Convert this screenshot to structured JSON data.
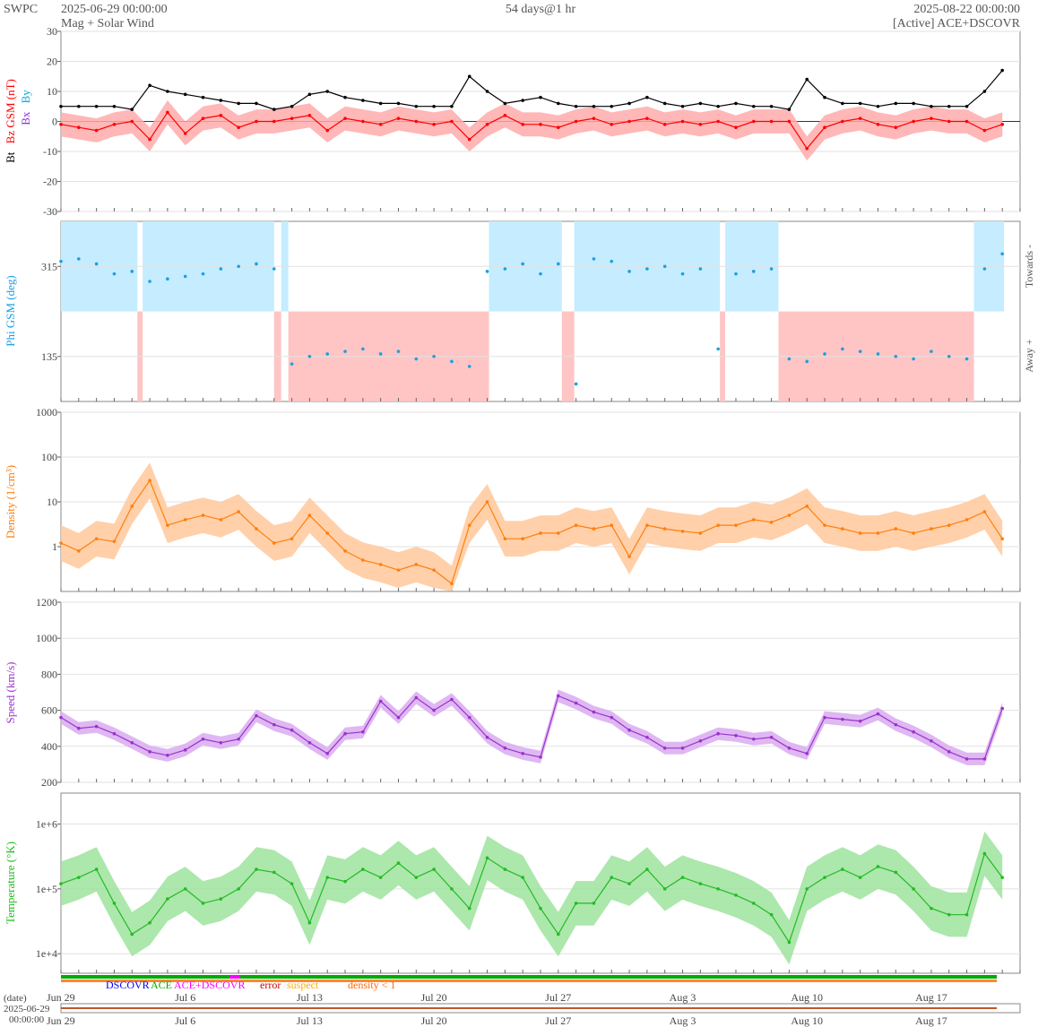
{
  "header": {
    "agency": "SWPC",
    "start": "2025-06-29 00:00:00",
    "subtitle": "Mag + Solar Wind",
    "span": "54 days@1 hr",
    "end": "2025-08-22 00:00:00",
    "source": "[Active] ACE+DSCOVR"
  },
  "colors": {
    "bt": "#000000",
    "bz": "#ff0000",
    "bz_band": "#ffaaaa",
    "bx": "#8a2be2",
    "by": "#00aadd",
    "phi": "#1aa0e0",
    "towards_band": "#c5ecff",
    "away_band": "#ffc5c5",
    "density": "#ff7f0e",
    "density_band": "#ffc89a",
    "speed": "#9933cc",
    "speed_band": "#d9aaf0",
    "temperature": "#22bb22",
    "temperature_band": "#9de39d",
    "dscovr": "#0000ff",
    "ace": "#00aa00",
    "ace_dscovr": "#ff00ff",
    "error": "#cc0000",
    "suspect": "#ffaa00",
    "density_flag": "#ff6600"
  },
  "legend": {
    "dscovr": "DSCOVR",
    "ace": "ACE",
    "ace_dscovr": "ACE+DSCOVR",
    "error": "error",
    "suspect": "suspect",
    "density_flag": "density < 1"
  },
  "footer": {
    "date_label": "(date)",
    "date_line1": "2025-06-29",
    "date_line2": "00:00:00"
  },
  "chart_data": [
    {
      "type": "line",
      "panel": "magnetic field",
      "ylabel_parts": [
        "Bt",
        "Bz GSM (nT)",
        "Bx",
        "By"
      ],
      "ylim": [
        -30,
        30
      ],
      "yticks": [
        -30,
        -20,
        -10,
        0,
        10,
        20,
        30
      ],
      "x_days": [
        0,
        1,
        2,
        3,
        4,
        5,
        6,
        7,
        8,
        9,
        10,
        11,
        12,
        13,
        14,
        15,
        16,
        17,
        18,
        19,
        20,
        21,
        22,
        23,
        24,
        25,
        26,
        27,
        28,
        29,
        30,
        31,
        32,
        33,
        34,
        35,
        36,
        37,
        38,
        39,
        40,
        41,
        42,
        43,
        44,
        45,
        46,
        47,
        48,
        49,
        50,
        51,
        52,
        53
      ],
      "series": [
        {
          "name": "Bt",
          "values": [
            5,
            5,
            5,
            5,
            4,
            12,
            10,
            9,
            8,
            7,
            6,
            6,
            4,
            5,
            9,
            10,
            8,
            7,
            6,
            6,
            5,
            5,
            5,
            15,
            10,
            6,
            7,
            8,
            6,
            5,
            5,
            5,
            6,
            8,
            6,
            5,
            6,
            5,
            6,
            5,
            5,
            4,
            14,
            8,
            6,
            6,
            5,
            6,
            6,
            5,
            5,
            5,
            10,
            17
          ]
        },
        {
          "name": "Bz",
          "values": [
            -1,
            -2,
            -3,
            -1,
            0,
            -6,
            3,
            -4,
            1,
            2,
            -2,
            0,
            0,
            1,
            2,
            -3,
            1,
            0,
            -1,
            1,
            0,
            -1,
            0,
            -6,
            -1,
            2,
            -1,
            -1,
            -2,
            0,
            1,
            -1,
            0,
            1,
            -1,
            0,
            -1,
            0,
            -2,
            0,
            0,
            0,
            -9,
            -2,
            0,
            1,
            -1,
            -2,
            0,
            1,
            0,
            0,
            -3,
            -1
          ]
        },
        {
          "name": "Bx",
          "values": [
            0,
            0,
            0,
            0,
            0,
            0,
            0,
            0,
            0,
            0,
            0,
            0,
            0,
            0,
            0,
            0,
            0,
            0,
            0,
            0,
            0,
            0,
            0,
            0,
            0,
            0,
            0,
            0,
            0,
            0,
            0,
            0,
            0,
            0,
            0,
            0,
            0,
            0,
            0,
            0,
            0,
            0,
            0,
            0,
            0,
            0,
            0,
            0,
            0,
            0,
            0,
            0,
            0,
            0
          ]
        },
        {
          "name": "By",
          "values": [
            0,
            0,
            0,
            0,
            0,
            0,
            0,
            0,
            0,
            0,
            0,
            0,
            0,
            0,
            0,
            0,
            0,
            0,
            0,
            0,
            0,
            0,
            0,
            0,
            0,
            0,
            0,
            0,
            0,
            0,
            0,
            0,
            0,
            0,
            0,
            0,
            0,
            0,
            0,
            0,
            0,
            0,
            0,
            0,
            0,
            0,
            0,
            0,
            0,
            0,
            0,
            0,
            0,
            0
          ]
        }
      ]
    },
    {
      "type": "scatter",
      "panel": "phi angle",
      "ylabel": "Phi GSM (deg)",
      "right_labels": [
        "Towards -",
        "Away +"
      ],
      "ylim": [
        45,
        405
      ],
      "yticks": [
        135,
        315
      ],
      "sectors": [
        {
          "from": 0,
          "to": 4.3,
          "sector": "towards"
        },
        {
          "from": 4.3,
          "to": 4.6,
          "sector": "away"
        },
        {
          "from": 4.6,
          "to": 12.0,
          "sector": "towards"
        },
        {
          "from": 12.0,
          "to": 12.4,
          "sector": "away"
        },
        {
          "from": 12.4,
          "to": 12.8,
          "sector": "towards"
        },
        {
          "from": 12.8,
          "to": 24.1,
          "sector": "away"
        },
        {
          "from": 24.1,
          "to": 28.2,
          "sector": "towards"
        },
        {
          "from": 28.2,
          "to": 28.9,
          "sector": "away"
        },
        {
          "from": 28.9,
          "to": 37.1,
          "sector": "towards"
        },
        {
          "from": 37.1,
          "to": 37.4,
          "sector": "away"
        },
        {
          "from": 37.4,
          "to": 40.4,
          "sector": "towards"
        },
        {
          "from": 40.4,
          "to": 51.4,
          "sector": "away"
        },
        {
          "from": 51.4,
          "to": 53.1,
          "sector": "towards"
        }
      ],
      "x_days": [
        0,
        1,
        2,
        3,
        4,
        5,
        6,
        7,
        8,
        9,
        10,
        11,
        12,
        13,
        14,
        15,
        16,
        17,
        18,
        19,
        20,
        21,
        22,
        23,
        24,
        25,
        26,
        27,
        28,
        29,
        30,
        31,
        32,
        33,
        34,
        35,
        36,
        37,
        38,
        39,
        40,
        41,
        42,
        43,
        44,
        45,
        46,
        47,
        48,
        49,
        50,
        51,
        52,
        53
      ],
      "values": [
        325,
        330,
        320,
        300,
        305,
        285,
        290,
        295,
        300,
        310,
        315,
        320,
        310,
        120,
        135,
        140,
        145,
        150,
        140,
        145,
        130,
        135,
        125,
        115,
        305,
        310,
        320,
        300,
        320,
        80,
        330,
        325,
        305,
        310,
        315,
        300,
        310,
        150,
        300,
        305,
        310,
        130,
        125,
        140,
        150,
        145,
        140,
        135,
        130,
        145,
        135,
        130,
        310,
        340
      ]
    },
    {
      "type": "line",
      "panel": "density",
      "ylabel": "Density (1/cm³)",
      "log_scale": true,
      "ylim": [
        0.1,
        1000
      ],
      "yticks": [
        1,
        10,
        100,
        1000
      ],
      "x_days": [
        0,
        1,
        2,
        3,
        4,
        5,
        6,
        7,
        8,
        9,
        10,
        11,
        12,
        13,
        14,
        15,
        16,
        17,
        18,
        19,
        20,
        21,
        22,
        23,
        24,
        25,
        26,
        27,
        28,
        29,
        30,
        31,
        32,
        33,
        34,
        35,
        36,
        37,
        38,
        39,
        40,
        41,
        42,
        43,
        44,
        45,
        46,
        47,
        48,
        49,
        50,
        51,
        52,
        53
      ],
      "values": [
        1.2,
        0.8,
        1.5,
        1.3,
        8,
        30,
        3,
        4,
        5,
        4,
        6,
        2.5,
        1.2,
        1.5,
        5,
        2,
        0.8,
        0.5,
        0.4,
        0.3,
        0.4,
        0.3,
        0.15,
        3,
        10,
        1.5,
        1.5,
        2,
        2,
        3,
        2.5,
        3,
        0.6,
        3,
        2.5,
        2.2,
        2,
        3,
        3,
        4,
        3.5,
        5,
        8,
        3,
        2.5,
        2,
        2,
        2.5,
        2,
        2.5,
        3,
        4,
        6,
        1.5
      ]
    },
    {
      "type": "line",
      "panel": "speed",
      "ylabel": "Speed (km/s)",
      "ylim": [
        200,
        1200
      ],
      "yticks": [
        200,
        400,
        600,
        800,
        1000,
        1200
      ],
      "x_days": [
        0,
        1,
        2,
        3,
        4,
        5,
        6,
        7,
        8,
        9,
        10,
        11,
        12,
        13,
        14,
        15,
        16,
        17,
        18,
        19,
        20,
        21,
        22,
        23,
        24,
        25,
        26,
        27,
        28,
        29,
        30,
        31,
        32,
        33,
        34,
        35,
        36,
        37,
        38,
        39,
        40,
        41,
        42,
        43,
        44,
        45,
        46,
        47,
        48,
        49,
        50,
        51,
        52,
        53
      ],
      "values": [
        560,
        500,
        510,
        470,
        420,
        370,
        350,
        380,
        440,
        420,
        440,
        570,
        520,
        490,
        420,
        360,
        470,
        480,
        650,
        560,
        670,
        600,
        660,
        560,
        450,
        390,
        360,
        340,
        680,
        640,
        590,
        560,
        490,
        450,
        390,
        390,
        430,
        470,
        460,
        440,
        450,
        390,
        360,
        560,
        550,
        540,
        580,
        520,
        480,
        430,
        370,
        330,
        330,
        610
      ]
    },
    {
      "type": "line",
      "panel": "temperature",
      "ylabel": "Temperature (°K)",
      "log_scale": true,
      "ylim": [
        5000,
        3000000
      ],
      "ytick_labels": [
        "1e+4",
        "1e+5",
        "1e+6"
      ],
      "yticks": [
        10000,
        100000,
        1000000
      ],
      "x_days": [
        0,
        1,
        2,
        3,
        4,
        5,
        6,
        7,
        8,
        9,
        10,
        11,
        12,
        13,
        14,
        15,
        16,
        17,
        18,
        19,
        20,
        21,
        22,
        23,
        24,
        25,
        26,
        27,
        28,
        29,
        30,
        31,
        32,
        33,
        34,
        35,
        36,
        37,
        38,
        39,
        40,
        41,
        42,
        43,
        44,
        45,
        46,
        47,
        48,
        49,
        50,
        51,
        52,
        53
      ],
      "values": [
        120000,
        150000,
        200000,
        60000,
        20000,
        30000,
        70000,
        100000,
        60000,
        70000,
        100000,
        200000,
        180000,
        120000,
        30000,
        150000,
        130000,
        200000,
        150000,
        250000,
        150000,
        200000,
        100000,
        50000,
        300000,
        200000,
        150000,
        50000,
        20000,
        60000,
        60000,
        150000,
        120000,
        200000,
        100000,
        150000,
        120000,
        100000,
        80000,
        60000,
        40000,
        15000,
        100000,
        150000,
        200000,
        150000,
        220000,
        180000,
        100000,
        50000,
        40000,
        40000,
        350000,
        150000
      ]
    }
  ],
  "x_axis": {
    "labels": [
      "Jun 29",
      "Jul 6",
      "Jul 13",
      "Jul 20",
      "Jul 27",
      "Aug 3",
      "Aug 10",
      "Aug 17"
    ],
    "label_days": [
      0,
      7,
      14,
      21,
      28,
      35,
      42,
      49
    ]
  }
}
